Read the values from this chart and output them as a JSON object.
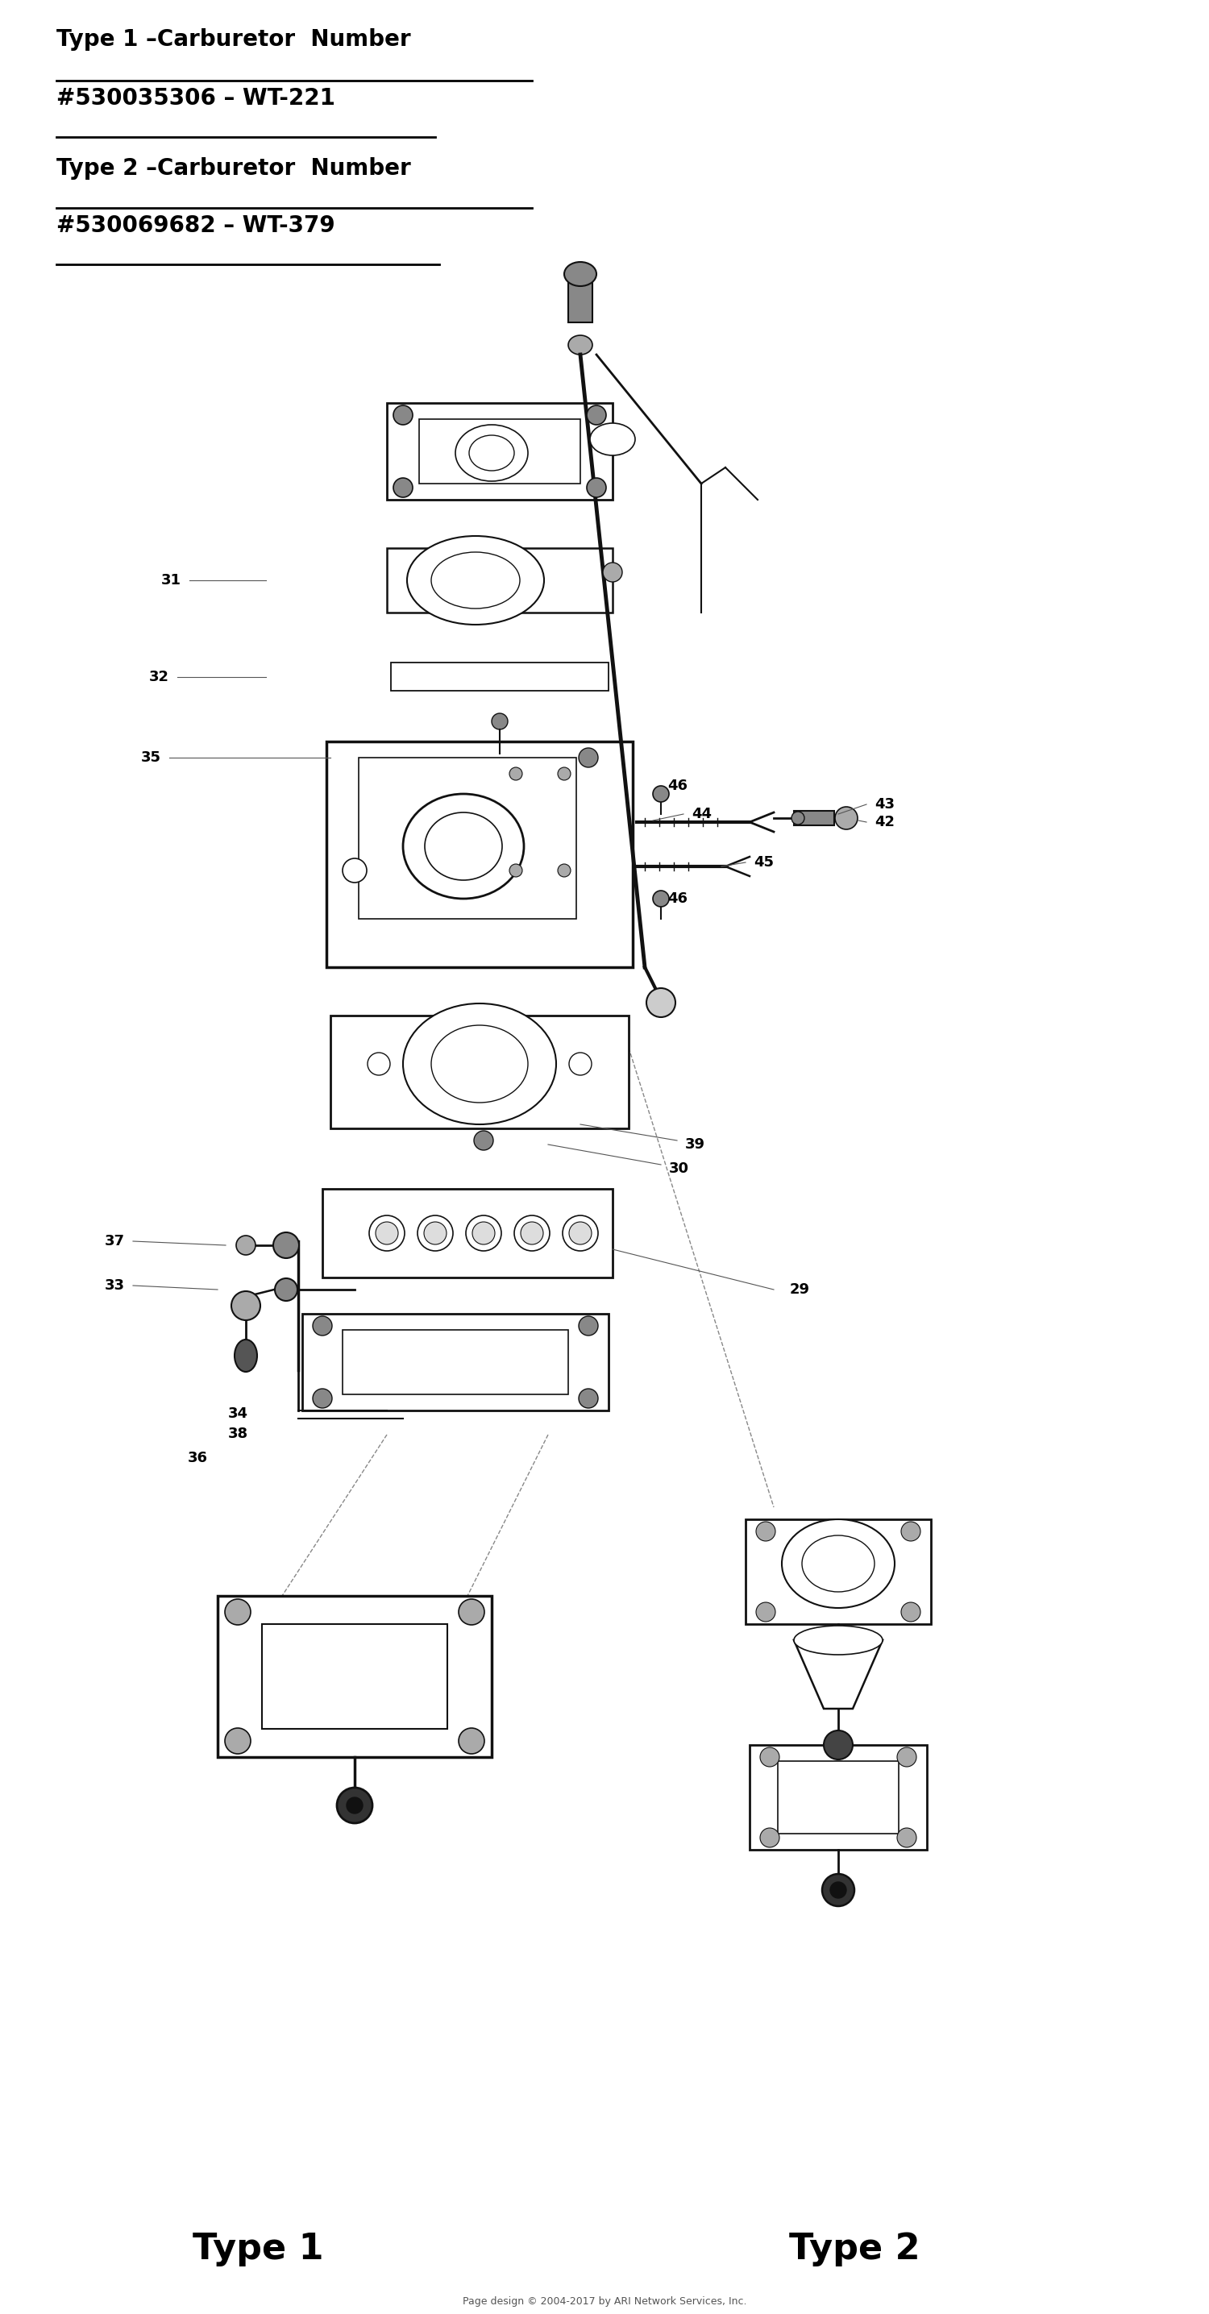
{
  "title1_line1": "Type 1 –Carburetor  Number",
  "title1_line2": "#530035306 – WT-221",
  "title2_line1": "Type 2 –Carburetor  Number",
  "title2_line2": "#530069682 – WT-379",
  "footer_type1": "Type 1",
  "footer_type2": "Type 2",
  "footer_copyright": "Page design © 2004-2017 by ARI Network Services, Inc.",
  "bg_color": "#ffffff",
  "text_color": "#000000",
  "diagram_color": "#111111"
}
